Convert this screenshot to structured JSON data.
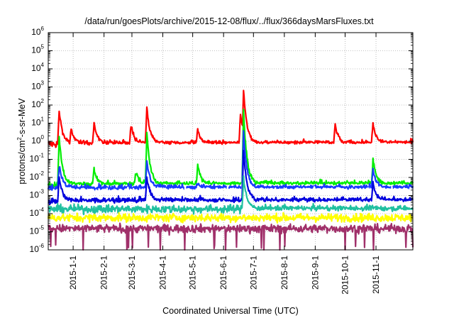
{
  "chart_data": {
    "type": "line",
    "title": "/data/run/goesPlots/archive/2015-12-08/flux/../flux/366daysMarsFluxes.txt",
    "xlabel": "Coordinated Universal Time (UTC)",
    "ylabel": {
      "pre": "protons/cm",
      "sup": "2",
      "post": "-s-sr-MeV"
    },
    "y_scale": "log",
    "ylim": [
      1e-06,
      1000000.0
    ],
    "y_ticks": [
      {
        "base": "10",
        "exp": "-6"
      },
      {
        "base": "10",
        "exp": "-5"
      },
      {
        "base": "10",
        "exp": "-4"
      },
      {
        "base": "10",
        "exp": "-3"
      },
      {
        "base": "10",
        "exp": "-2"
      },
      {
        "base": "10",
        "exp": "-1"
      },
      {
        "base": "10",
        "exp": "0"
      },
      {
        "base": "10",
        "exp": "1"
      },
      {
        "base": "10",
        "exp": "2"
      },
      {
        "base": "10",
        "exp": "3"
      },
      {
        "base": "10",
        "exp": "4"
      },
      {
        "base": "10",
        "exp": "5"
      },
      {
        "base": "10",
        "exp": "6"
      }
    ],
    "x_range": [
      "2014-12-07",
      "2015-12-08"
    ],
    "x_ticks": [
      "2015-1-1",
      "2015-2-1",
      "2015-3-1",
      "2015-4-1",
      "2015-5-1",
      "2015-6-1",
      "2015-7-1",
      "2015-8-1",
      "2015-9-1",
      "2015-10-1",
      "2015-11-1"
    ],
    "grid": true,
    "series": [
      {
        "color": "#ff0000",
        "baseline": 0.7,
        "events": [
          {
            "date": "2014-12-18",
            "peak": 50
          },
          {
            "date": "2014-12-30",
            "peak": 5
          },
          {
            "date": "2015-01-22",
            "peak": 10
          },
          {
            "date": "2015-02-28",
            "peak": 8
          },
          {
            "date": "2015-03-16",
            "peak": 70
          },
          {
            "date": "2015-05-06",
            "peak": 5
          },
          {
            "date": "2015-06-18",
            "peak": 30
          },
          {
            "date": "2015-06-21",
            "peak": 700
          },
          {
            "date": "2015-09-21",
            "peak": 8
          },
          {
            "date": "2015-10-29",
            "peak": 10
          }
        ]
      },
      {
        "color": "#00ee00",
        "baseline": 0.004,
        "events": [
          {
            "date": "2014-12-18",
            "peak": 1.5
          },
          {
            "date": "2015-01-22",
            "peak": 0.03
          },
          {
            "date": "2015-03-05",
            "peak": 0.02
          },
          {
            "date": "2015-03-16",
            "peak": 3
          },
          {
            "date": "2015-05-06",
            "peak": 0.05
          },
          {
            "date": "2015-06-21",
            "peak": 50
          },
          {
            "date": "2015-10-29",
            "peak": 0.1
          }
        ]
      },
      {
        "color": "#1a3cff",
        "baseline": 0.0025,
        "events": [
          {
            "date": "2014-12-18",
            "peak": 0.05
          },
          {
            "date": "2015-03-16",
            "peak": 0.08
          },
          {
            "date": "2015-05-06",
            "peak": 0.005
          },
          {
            "date": "2015-06-21",
            "peak": 3
          },
          {
            "date": "2015-10-29",
            "peak": 0.03
          }
        ]
      },
      {
        "color": "#ffffff",
        "baseline": 0.0015,
        "events": [
          {
            "date": "2015-06-21",
            "peak": 0.2
          }
        ]
      },
      {
        "color": "#0000dd",
        "baseline": 0.0005,
        "events": [
          {
            "date": "2014-12-18",
            "peak": 0.01
          },
          {
            "date": "2015-03-16",
            "peak": 0.01
          },
          {
            "date": "2015-06-21",
            "peak": 0.3
          },
          {
            "date": "2015-10-29",
            "peak": 0.005
          }
        ]
      },
      {
        "color": "#20c0a0",
        "baseline": 0.00018,
        "events": [
          {
            "date": "2015-06-21",
            "peak": 0.01
          }
        ]
      },
      {
        "color": "#ffff00",
        "baseline": 6e-05,
        "events": []
      },
      {
        "color": "#a0306a",
        "baseline": 1.5e-05,
        "events": []
      }
    ]
  }
}
